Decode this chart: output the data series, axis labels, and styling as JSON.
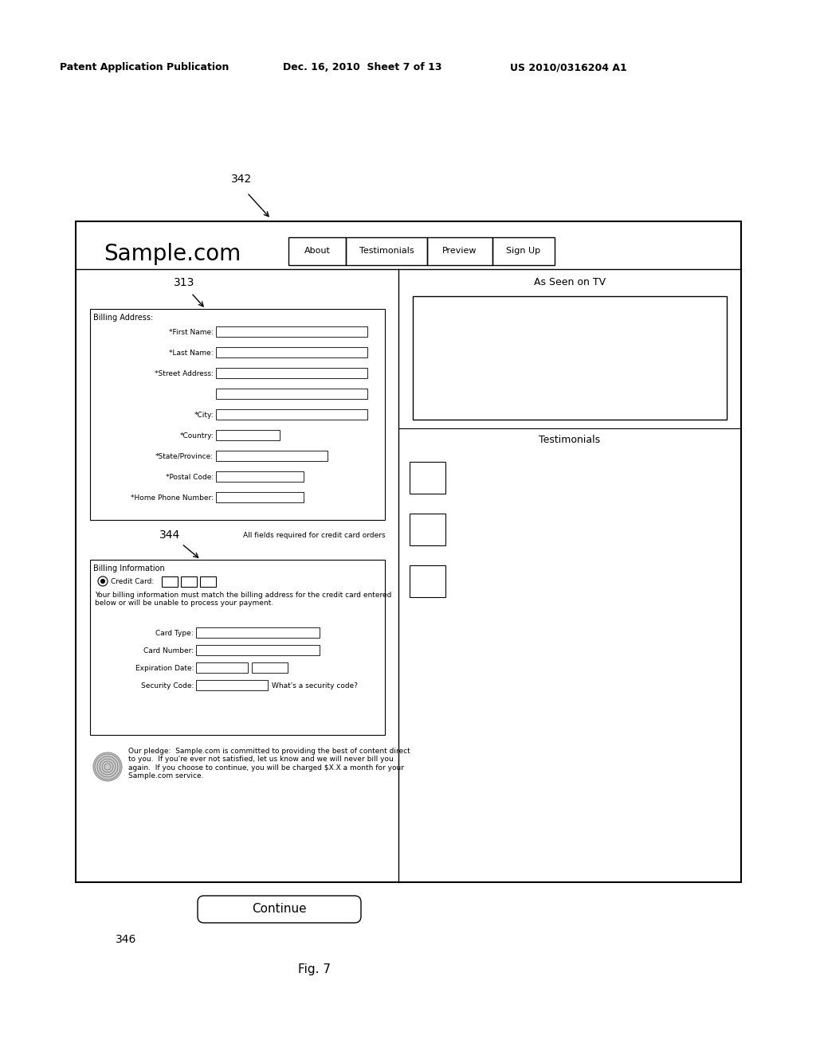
{
  "bg_color": "#ffffff",
  "header_left": "Patent Application Publication",
  "header_mid": "Dec. 16, 2010  Sheet 7 of 13",
  "header_right": "US 2010/0316204 A1",
  "fig_label": "Fig. 7",
  "label_342": "342",
  "label_313": "313",
  "label_344": "344",
  "label_346": "346",
  "site_title": "Sample.com",
  "nav_items": [
    "About",
    "Testimonials",
    "Preview",
    "Sign Up"
  ],
  "as_seen": "As Seen on TV",
  "testimonials_title": "Testimonials",
  "billing_address_label": "Billing Address:",
  "billing_info_label": "Billing Information",
  "form_fields_addr": [
    "*First Name:",
    "*Last Name:",
    "*Street Address:",
    "",
    "*City:",
    "*Country:",
    "*State/Province:",
    "*Postal Code:",
    "*Home Phone Number:"
  ],
  "billing_fields": [
    "Card Type:",
    "Card Number:",
    "Expiration Date:",
    "Security Code:"
  ],
  "pledge_text": "Our pledge:  Sample.com is committed to providing the best of content direct\nto you.  If you're ever not satisfied, let us know and we will never bill you\nagain.  If you choose to continue, you will be charged $X.X a month for your\nSample.com service.",
  "continue_btn": "Continue",
  "credit_card_label": "Credit Card:",
  "all_fields_text": "All fields required for credit card orders",
  "security_code_hint": "What's a security code?",
  "billing_warning": "Your billing information must match the billing address for the credit card entered\nbelow or will be unable to process your payment."
}
